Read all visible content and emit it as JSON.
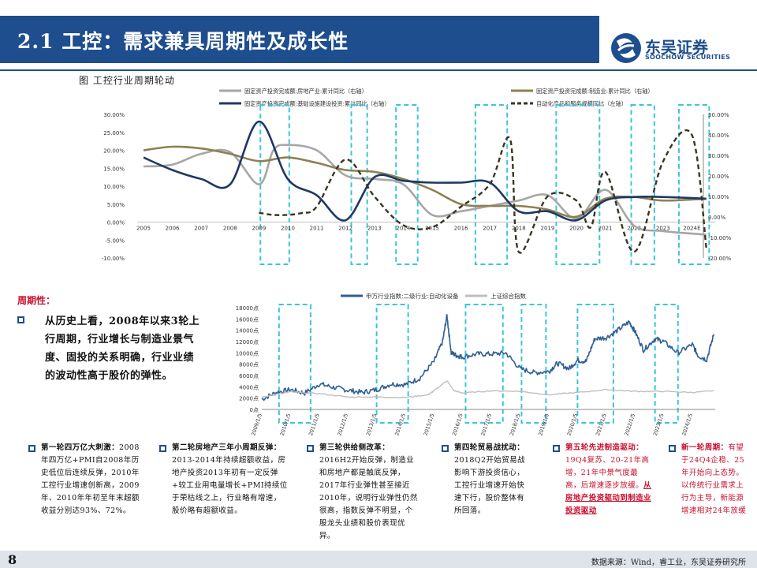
{
  "header": {
    "title": "2.1 工控：需求兼具周期性及成长性",
    "logo_text": "东吴证券",
    "logo_sub": "SOOCHOW SECURITIES"
  },
  "figure_caption": "图 工控行业周期轮动",
  "colors": {
    "brand": "#1f4e8f",
    "real_estate": "#a6a6a6",
    "manufacturing": "#8c8153",
    "infrastructure": "#1f3864",
    "automation": "#3a3422",
    "sw_index": "#2f5f93",
    "sh_index": "#bfbfbf",
    "cycle_box": "#38c6dc",
    "highlight_red": "#c8102e"
  },
  "chart_data": [
    {
      "type": "line",
      "legend": [
        "固定资产投资完成额:房地产业:累计同比（右轴）",
        "固定资产投资完成额:制造业:累计同比（右轴）",
        "固定资产投资完成额:基础设施建设投资:累计同比（右轴）",
        "自动化产品和服务规模同比（左轴）"
      ],
      "x_ticks": [
        "2005",
        "2006",
        "2007",
        "2008",
        "2009",
        "2010",
        "2011",
        "2012",
        "2013",
        "2014",
        "2015",
        "2016",
        "2017",
        "2018",
        "2019",
        "2020",
        "2021",
        "2022",
        "2023",
        "2024E"
      ],
      "left_axis": {
        "ticks": [
          "30.00%",
          "25.00%",
          "20.00%",
          "15.00%",
          "10.00%",
          "5.00%",
          "0.00%",
          "-5.00%",
          "-10.00%"
        ],
        "range": [
          -10,
          30
        ]
      },
      "right_axis": {
        "ticks": [
          "50.00%",
          "40.00%",
          "30.00%",
          "20.00%",
          "10.00%",
          "0.00%",
          "-10.00%",
          "-20.00%"
        ],
        "range": [
          -20,
          50
        ]
      },
      "series": [
        {
          "name": "固定资产投资完成额:房地产业:累计同比（右轴）",
          "axis": "left",
          "x": [
            2005,
            2006,
            2007,
            2008,
            2009,
            2009.5,
            2010,
            2011,
            2012,
            2013,
            2014,
            2015,
            2016,
            2017,
            2018,
            2019,
            2020,
            2021,
            2022,
            2023,
            2024.5
          ],
          "y": [
            15.5,
            16,
            19,
            19.5,
            10.5,
            20,
            21.5,
            20,
            13,
            12,
            10.5,
            2,
            3,
            4.5,
            6,
            7.5,
            1,
            9,
            -1,
            -2.5,
            -3.5
          ]
        },
        {
          "name": "固定资产投资完成额:制造业:累计同比（右轴）",
          "axis": "left",
          "x": [
            2005,
            2006,
            2007,
            2008,
            2009,
            2010,
            2011,
            2012,
            2013,
            2014,
            2015,
            2016,
            2017,
            2018,
            2019,
            2020,
            2021,
            2022,
            2023,
            2024.5
          ],
          "y": [
            20,
            21,
            20.5,
            19,
            17,
            18,
            16.5,
            14.5,
            14,
            12,
            9,
            5,
            4.5,
            4.5,
            3.5,
            1.5,
            6.5,
            7,
            6,
            6.5
          ]
        },
        {
          "name": "固定资产投资完成额:基础设施建设投资:累计同比（右轴）",
          "axis": "left",
          "x": [
            2005,
            2006,
            2007,
            2008,
            2009,
            2010,
            2011,
            2012,
            2013,
            2014,
            2015,
            2016,
            2017,
            2018,
            2019,
            2020,
            2021,
            2022,
            2023,
            2024.5
          ],
          "y": [
            18,
            14.5,
            12,
            10.5,
            28,
            12,
            7.5,
            0.5,
            12.5,
            11.5,
            11,
            11,
            11,
            3,
            3,
            0.5,
            6,
            7,
            7,
            6.5
          ]
        },
        {
          "name": "自动化产品和服务规模同比（左轴）",
          "axis": "right",
          "dashed": true,
          "x": [
            2009,
            2009.5,
            2010,
            2010.5,
            2011,
            2012,
            2013,
            2014,
            2015,
            2016,
            2017,
            2017.7,
            2018,
            2019,
            2020,
            2020.5,
            2021,
            2022,
            2023,
            2024,
            2024.5
          ],
          "y": [
            2,
            1,
            1,
            2,
            5,
            28,
            10,
            -4,
            -5,
            5,
            16,
            38,
            -17,
            10,
            8,
            -5,
            22,
            -17,
            27,
            40,
            -15
          ]
        }
      ]
    },
    {
      "type": "line",
      "legend": [
        "申万行业指数:二级行业:自动化设备",
        "上证综合指数"
      ],
      "y_ticks": [
        "18000点",
        "16000点",
        "14000点",
        "12000点",
        "10000点",
        "8000点",
        "6000点",
        "4000点",
        "2000点",
        "0点"
      ],
      "y_range": [
        0,
        18000
      ],
      "x_ticks": [
        "2009/1/5",
        "2010/1/5",
        "2011/1/5",
        "2012/1/5",
        "2013/1/5",
        "2014/1/5",
        "2015/1/5",
        "2016/1/5",
        "2017/1/5",
        "2018/1/5",
        "2019/1/5",
        "2020/1/5",
        "2021/1/5",
        "2022/1/5",
        "2023/1/5",
        "2024/1/5"
      ],
      "series": [
        {
          "name": "申万行业指数:二级行业:自动化设备",
          "x": [
            2009,
            2009.5,
            2010,
            2010.5,
            2011,
            2011.5,
            2012,
            2012.5,
            2013,
            2013.5,
            2014,
            2014.5,
            2015,
            2015.3,
            2015.45,
            2015.6,
            2015.8,
            2016,
            2016.5,
            2017,
            2017.5,
            2018,
            2018.5,
            2019,
            2019.3,
            2019.7,
            2020,
            2020.3,
            2020.6,
            2021,
            2021.4,
            2021.8,
            2022,
            2022.3,
            2022.7,
            2023,
            2023.5,
            2024,
            2024.2,
            2024.5,
            2024.75
          ],
          "y": [
            1800,
            3000,
            3500,
            2900,
            4500,
            3900,
            3400,
            3000,
            3500,
            4500,
            4400,
            5500,
            8500,
            12000,
            16600,
            10000,
            9500,
            9300,
            9800,
            9800,
            10000,
            7200,
            6500,
            6700,
            8200,
            7200,
            8700,
            8500,
            12500,
            12700,
            14000,
            15500,
            13800,
            10500,
            12500,
            12000,
            10000,
            11500,
            9500,
            8800,
            13300
          ]
        },
        {
          "name": "上证综合指数",
          "x": [
            2009,
            2010,
            2011,
            2012,
            2013,
            2014,
            2014.8,
            2015,
            2015.45,
            2015.7,
            2016,
            2017,
            2018,
            2019,
            2020,
            2021,
            2022,
            2023,
            2024,
            2024.75
          ],
          "y": [
            2200,
            3100,
            2800,
            2200,
            2200,
            2100,
            2600,
            3300,
            5100,
            3300,
            2900,
            3300,
            3200,
            2600,
            3000,
            3500,
            3200,
            3200,
            3000,
            3300
          ]
        }
      ]
    }
  ],
  "cycle_section": {
    "heading": "周期性：",
    "body": "从历史上看，2008年以来3轮上行周期，行业增长与制造业景气度、固投的关系明确，行业业绩的波动性高于股价的弹性。"
  },
  "rounds": [
    {
      "title": "第一轮四万亿大刺激：",
      "text": "2008年四万亿+PMI自2008年历史低位后连续反弹，2010年工控行业增速创新高，2009年、2010年年初至年末超额收益分别达93%、72%。"
    },
    {
      "title": "第二轮房地产三年小周期反弹：",
      "text": "2013-2014年持续超额收益，房地产投资2013年初有一定反弹+较工业用电量增长+PMI持续位于荣枯线之上，行业略有增速，股价略有超额收益。"
    },
    {
      "title": "第三轮供给侧改革：",
      "text": "2016H2开始反弹，制造业和房地产都是触底反弹，2017年行业弹性甚至接近2010年，说明行业弹性仍然很高，指数反弹不明显，个股龙头业绩和股价表现优异。"
    },
    {
      "title": "第四轮贸易战扰动：",
      "text": "2018Q2开始贸易战影响下游投资信心，工控行业增速开始快速下行，股价整体有所回落。"
    },
    {
      "title": "第五轮先进制造驱动：",
      "text_red": "19Q4复苏、20-21年高增，21年中景气度最高，后增速逐步放缓。",
      "text_red_bold": "从房地产投资驱动到制造业投资驱动"
    },
    {
      "title": "新一轮周期：",
      "text_red": "有望于24Q4企稳、25年开始向上态势。以传统行业需求上行为主导，新能源增速相对24年放缓"
    }
  ],
  "footer": {
    "page_number": "8",
    "source": "数据来源：Wind，睿工业，东吴证券研究所"
  }
}
